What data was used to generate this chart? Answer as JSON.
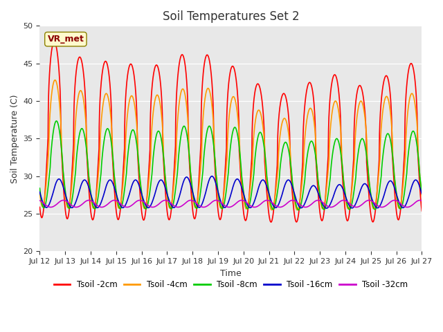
{
  "title": "Soil Temperatures Set 2",
  "xlabel": "Time",
  "ylabel": "Soil Temperature (C)",
  "ylim": [
    20,
    50
  ],
  "annotation": "VR_met",
  "x_tick_labels": [
    "Jul 12",
    "Jul 13",
    "Jul 14",
    "Jul 15",
    "Jul 16",
    "Jul 17",
    "Jul 18",
    "Jul 19",
    "Jul 20",
    "Jul 21",
    "Jul 22",
    "Jul 23",
    "Jul 24",
    "Jul 25",
    "Jul 26",
    "Jul 27"
  ],
  "series": {
    "Tsoil -2cm": {
      "color": "#ff0000",
      "linewidth": 1.2
    },
    "Tsoil -4cm": {
      "color": "#ff9900",
      "linewidth": 1.2
    },
    "Tsoil -8cm": {
      "color": "#00cc00",
      "linewidth": 1.2
    },
    "Tsoil -16cm": {
      "color": "#0000cc",
      "linewidth": 1.2
    },
    "Tsoil -32cm": {
      "color": "#cc00cc",
      "linewidth": 1.2
    }
  },
  "bg_color": "#e8e8e8",
  "fig_bg": "#ffffff",
  "title_fontsize": 12,
  "label_fontsize": 9,
  "tick_fontsize": 8
}
